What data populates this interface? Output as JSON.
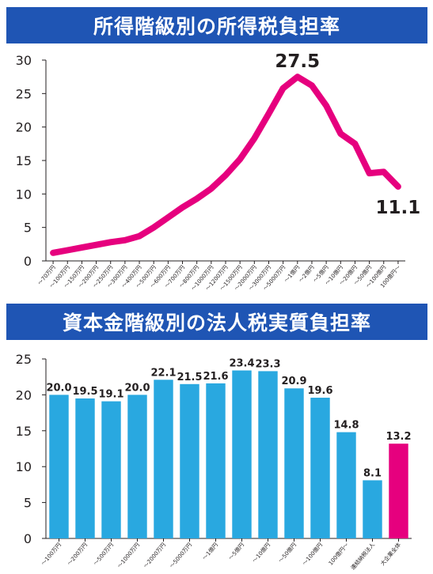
{
  "chart_data": [
    {
      "type": "line",
      "title": "所得階級別の所得税負担率",
      "xlabel": "",
      "ylabel": "",
      "ylim": [
        0,
        30
      ],
      "yticks": [
        0,
        5,
        10,
        15,
        20,
        25,
        30
      ],
      "grid": false,
      "color": "#e6007e",
      "categories": [
        "〜70万円",
        "〜100万円",
        "〜150万円",
        "〜200万円",
        "〜250万円",
        "〜300万円",
        "〜400万円",
        "〜500万円",
        "〜600万円",
        "〜700万円",
        "〜800万円",
        "〜1000万円",
        "〜1200万円",
        "〜1500万円",
        "〜2000万円",
        "〜3000万円",
        "〜5000万円",
        "〜1億円",
        "〜2億円",
        "〜5億円",
        "〜10億円",
        "〜20億円",
        "〜50億円",
        "〜100億円",
        "100億円〜"
      ],
      "series": [
        {
          "values": [
            1.2,
            1.6,
            2.0,
            2.4,
            2.8,
            3.1,
            3.7,
            5.0,
            6.5,
            8.0,
            9.3,
            10.8,
            12.8,
            15.2,
            18.3,
            22.0,
            25.8,
            27.5,
            26.2,
            23.2,
            19.0,
            17.5,
            13.1,
            13.3,
            11.1
          ]
        }
      ],
      "annotations": [
        {
          "text": "27.5",
          "category": "〜1億円",
          "value": 27.5
        },
        {
          "text": "11.1",
          "category": "100億円〜",
          "value": 11.1
        }
      ]
    },
    {
      "type": "bar",
      "title": "資本金階級別の法人税実質負担率",
      "xlabel": "",
      "ylabel": "",
      "ylim": [
        0,
        25
      ],
      "yticks": [
        0,
        5,
        10,
        15,
        20,
        25
      ],
      "grid": false,
      "categories": [
        "〜100万円",
        "〜200万円",
        "〜500万円",
        "〜1000万円",
        "〜2000万円",
        "〜5000万円",
        "〜1億円",
        "〜5億円",
        "〜10億円",
        "〜50億円",
        "〜100億円",
        "100億円〜",
        "連結納税法人",
        "大企業全体"
      ],
      "values": [
        20.0,
        19.5,
        19.1,
        20.0,
        22.1,
        21.5,
        21.6,
        23.4,
        23.3,
        20.9,
        19.6,
        14.8,
        8.1,
        13.2
      ],
      "labels": [
        "20.0",
        "19.5",
        "19.1",
        "20.0",
        "22.1",
        "21.5",
        "21.6",
        "23.4",
        "23.3",
        "20.9",
        "19.6",
        "14.8",
        "8.1",
        "13.2"
      ],
      "bar_color": "#29a8e0",
      "highlight_color": "#e6007e",
      "highlight_index": 13
    }
  ]
}
